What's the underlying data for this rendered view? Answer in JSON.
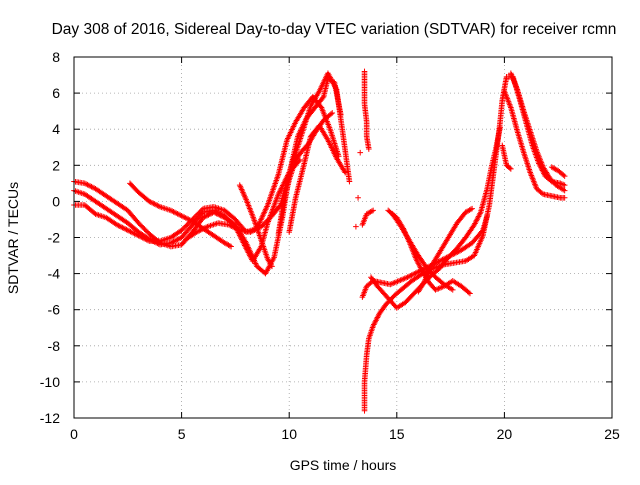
{
  "chart_data": {
    "type": "scatter",
    "title": "Day 308 of 2016, Sidereal Day-to-day VTEC variation (SDTVAR) for receiver rcmn",
    "xlabel": "GPS time / hours",
    "ylabel": "SDTVAR / TECUs",
    "xlim": [
      0,
      25
    ],
    "ylim": [
      -12,
      8
    ],
    "xticks": [
      0,
      5,
      10,
      15,
      20,
      25
    ],
    "yticks": [
      -12,
      -10,
      -8,
      -6,
      -4,
      -2,
      0,
      2,
      4,
      6,
      8
    ],
    "grid": true,
    "marker": "plus",
    "series": [
      {
        "name": "SDTVAR",
        "color": "#ff0000",
        "tracks": [
          [
            [
              0.0,
              1.1
            ],
            [
              0.5,
              1.0
            ],
            [
              1.0,
              0.7
            ],
            [
              1.5,
              0.3
            ],
            [
              2.0,
              -0.1
            ],
            [
              2.5,
              -0.5
            ],
            [
              3.0,
              -1.2
            ],
            [
              3.5,
              -1.8
            ],
            [
              4.0,
              -2.3
            ],
            [
              4.5,
              -2.5
            ],
            [
              5.0,
              -2.4
            ],
            [
              5.5,
              -1.7
            ],
            [
              6.0,
              -0.9
            ],
            [
              6.5,
              -0.6
            ],
            [
              7.0,
              -0.9
            ],
            [
              7.5,
              -1.3
            ],
            [
              8.0,
              -2.3
            ],
            [
              8.5,
              -3.6
            ],
            [
              8.9,
              -4.0
            ],
            [
              9.3,
              -3.1
            ],
            [
              9.7,
              -0.8
            ],
            [
              10.0,
              1.5
            ],
            [
              10.4,
              3.6
            ],
            [
              10.8,
              4.6
            ],
            [
              11.2,
              5.2
            ],
            [
              11.6,
              5.8
            ],
            [
              11.8,
              6.8
            ],
            [
              12.1,
              6.6
            ],
            [
              12.4,
              4.8
            ]
          ],
          [
            [
              0.0,
              0.6
            ],
            [
              0.5,
              0.4
            ],
            [
              1.0,
              0.0
            ],
            [
              1.5,
              -0.4
            ],
            [
              2.0,
              -0.8
            ],
            [
              2.5,
              -1.2
            ],
            [
              3.0,
              -1.7
            ],
            [
              3.5,
              -2.1
            ],
            [
              4.0,
              -2.4
            ],
            [
              4.5,
              -2.3
            ],
            [
              5.0,
              -2.0
            ],
            [
              5.5,
              -1.3
            ],
            [
              6.0,
              -0.6
            ],
            [
              6.5,
              -0.5
            ],
            [
              7.0,
              -0.8
            ],
            [
              7.5,
              -1.4
            ],
            [
              8.0,
              -2.6
            ],
            [
              8.3,
              -3.3
            ],
            [
              8.7,
              -2.5
            ],
            [
              9.0,
              -1.2
            ],
            [
              9.5,
              0.4
            ],
            [
              10.0,
              1.6
            ],
            [
              10.5,
              3.4
            ],
            [
              11.0,
              5.3
            ],
            [
              11.4,
              6.1
            ],
            [
              11.8,
              7.1
            ],
            [
              12.2,
              6.2
            ],
            [
              12.5,
              3.7
            ],
            [
              12.8,
              1.1
            ]
          ],
          [
            [
              0.0,
              -0.2
            ],
            [
              0.5,
              -0.2
            ],
            [
              1.0,
              -0.7
            ],
            [
              1.5,
              -0.9
            ],
            [
              2.0,
              -1.3
            ],
            [
              2.5,
              -1.6
            ],
            [
              3.0,
              -1.9
            ],
            [
              3.5,
              -2.2
            ],
            [
              4.0,
              -2.2
            ],
            [
              4.5,
              -2.0
            ],
            [
              5.0,
              -1.6
            ],
            [
              5.5,
              -1.0
            ],
            [
              6.0,
              -0.4
            ],
            [
              6.5,
              -0.3
            ],
            [
              7.0,
              -0.5
            ],
            [
              7.5,
              -1.0
            ],
            [
              8.0,
              -1.7
            ],
            [
              8.5,
              -1.5
            ],
            [
              9.0,
              -0.2
            ],
            [
              9.5,
              1.5
            ],
            [
              9.9,
              3.4
            ],
            [
              10.3,
              4.4
            ],
            [
              10.7,
              5.2
            ],
            [
              11.1,
              5.8
            ],
            [
              11.5,
              5.2
            ],
            [
              11.9,
              4.0
            ],
            [
              12.3,
              2.5
            ]
          ],
          [
            [
              2.6,
              1.0
            ],
            [
              3.0,
              0.5
            ],
            [
              3.5,
              0.0
            ],
            [
              4.0,
              -0.3
            ],
            [
              4.5,
              -0.5
            ],
            [
              5.0,
              -0.8
            ],
            [
              5.5,
              -1.1
            ],
            [
              6.0,
              -1.5
            ],
            [
              6.5,
              -1.9
            ],
            [
              7.0,
              -2.3
            ],
            [
              7.3,
              -2.5
            ]
          ],
          [
            [
              5.2,
              -2.1
            ],
            [
              5.7,
              -1.7
            ],
            [
              6.2,
              -1.4
            ],
            [
              6.7,
              -1.2
            ],
            [
              7.2,
              -1.3
            ],
            [
              7.7,
              -1.6
            ],
            [
              8.2,
              -1.7
            ],
            [
              8.7,
              -1.4
            ],
            [
              9.2,
              -0.8
            ],
            [
              9.6,
              -0.2
            ],
            [
              10.0,
              1.6
            ],
            [
              10.5,
              2.3
            ]
          ],
          [
            [
              7.7,
              0.9
            ],
            [
              8.0,
              0.1
            ],
            [
              8.3,
              -0.8
            ],
            [
              8.6,
              -1.8
            ],
            [
              9.0,
              -3.2
            ],
            [
              9.2,
              -3.6
            ]
          ],
          [
            [
              9.5,
              -1.8
            ],
            [
              9.7,
              -0.3
            ],
            [
              10.0,
              1.2
            ],
            [
              10.3,
              2.3
            ],
            [
              10.6,
              2.8
            ],
            [
              10.9,
              3.2
            ],
            [
              11.2,
              3.8
            ],
            [
              11.6,
              4.5
            ],
            [
              12.0,
              4.9
            ]
          ],
          [
            [
              10.0,
              -1.7
            ],
            [
              10.3,
              0.2
            ],
            [
              10.7,
              2.1
            ],
            [
              11.0,
              3.6
            ],
            [
              11.4,
              4.2
            ],
            [
              11.8,
              3.4
            ],
            [
              12.2,
              2.4
            ],
            [
              12.6,
              1.6
            ]
          ],
          [
            [
              13.4,
              -1.3
            ],
            [
              13.6,
              -0.7
            ],
            [
              13.9,
              -0.5
            ]
          ],
          [
            [
              13.1,
              -1.4
            ]
          ],
          [
            [
              13.2,
              0.2
            ]
          ],
          [
            [
              13.3,
              2.7
            ]
          ],
          [
            [
              13.4,
              -5.3
            ],
            [
              13.6,
              -4.7
            ],
            [
              13.9,
              -4.4
            ],
            [
              14.3,
              -4.5
            ],
            [
              14.7,
              -4.6
            ],
            [
              15.1,
              -4.4
            ],
            [
              15.5,
              -4.2
            ],
            [
              16.0,
              -3.9
            ],
            [
              16.5,
              -3.6
            ],
            [
              17.0,
              -3.3
            ],
            [
              17.5,
              -3.0
            ],
            [
              18.0,
              -2.7
            ],
            [
              18.5,
              -2.3
            ],
            [
              19.0,
              -1.6
            ],
            [
              19.2,
              -0.8
            ]
          ],
          [
            [
              13.5,
              -11.6
            ],
            [
              13.5,
              -10.0
            ],
            [
              13.6,
              -8.5
            ],
            [
              13.7,
              -7.6
            ],
            [
              13.9,
              -6.9
            ],
            [
              14.2,
              -6.2
            ],
            [
              14.5,
              -5.7
            ],
            [
              14.9,
              -5.2
            ],
            [
              15.3,
              -4.8
            ],
            [
              15.7,
              -4.4
            ],
            [
              16.2,
              -4.0
            ],
            [
              16.7,
              -3.7
            ],
            [
              17.2,
              -3.5
            ],
            [
              17.7,
              -3.4
            ],
            [
              18.2,
              -3.3
            ],
            [
              18.6,
              -3.0
            ],
            [
              19.0,
              -1.9
            ],
            [
              19.3,
              -0.2
            ],
            [
              19.5,
              1.6
            ],
            [
              19.7,
              3.4
            ],
            [
              19.8,
              4.4
            ]
          ],
          [
            [
              13.8,
              -4.2
            ],
            [
              14.1,
              -4.7
            ],
            [
              14.4,
              -5.1
            ],
            [
              14.7,
              -5.5
            ],
            [
              15.0,
              -5.9
            ],
            [
              15.4,
              -5.6
            ],
            [
              15.8,
              -5.1
            ],
            [
              16.2,
              -4.6
            ],
            [
              16.6,
              -4.1
            ],
            [
              17.0,
              -3.7
            ],
            [
              17.4,
              -3.1
            ],
            [
              17.8,
              -2.6
            ],
            [
              18.2,
              -2.0
            ],
            [
              18.6,
              -1.3
            ],
            [
              18.9,
              -0.6
            ],
            [
              19.2,
              0.7
            ],
            [
              19.4,
              1.9
            ],
            [
              19.6,
              2.9
            ],
            [
              19.8,
              4.1
            ]
          ],
          [
            [
              14.6,
              -0.5
            ],
            [
              15.0,
              -0.9
            ],
            [
              15.3,
              -1.5
            ],
            [
              15.6,
              -2.3
            ],
            [
              15.9,
              -3.2
            ],
            [
              16.2,
              -3.9
            ],
            [
              16.5,
              -4.5
            ],
            [
              16.8,
              -4.9
            ],
            [
              17.2,
              -4.7
            ],
            [
              17.6,
              -4.4
            ],
            [
              18.0,
              -4.7
            ],
            [
              18.4,
              -5.1
            ]
          ],
          [
            [
              14.8,
              -0.7
            ],
            [
              15.2,
              -1.4
            ],
            [
              15.6,
              -2.2
            ],
            [
              16.0,
              -3.0
            ],
            [
              16.4,
              -3.7
            ],
            [
              16.8,
              -4.2
            ],
            [
              17.2,
              -4.6
            ],
            [
              17.6,
              -4.9
            ]
          ],
          [
            [
              16.0,
              -5.0
            ],
            [
              16.3,
              -4.4
            ],
            [
              16.6,
              -3.6
            ],
            [
              17.0,
              -2.8
            ],
            [
              17.4,
              -2.0
            ],
            [
              17.8,
              -1.2
            ],
            [
              18.2,
              -0.6
            ],
            [
              18.5,
              -0.4
            ]
          ],
          [
            [
              13.5,
              7.2
            ],
            [
              13.5,
              6.4
            ],
            [
              13.5,
              5.4
            ],
            [
              13.6,
              4.4
            ],
            [
              13.6,
              3.6
            ],
            [
              13.7,
              2.9
            ]
          ],
          [
            [
              19.8,
              4.4
            ],
            [
              19.9,
              5.6
            ],
            [
              20.1,
              6.9
            ],
            [
              20.4,
              6.9
            ],
            [
              20.7,
              5.7
            ],
            [
              21.0,
              4.4
            ],
            [
              21.3,
              3.1
            ],
            [
              21.6,
              2.1
            ],
            [
              21.9,
              1.4
            ],
            [
              22.2,
              1.1
            ],
            [
              22.6,
              1.0
            ],
            [
              22.8,
              0.9
            ]
          ],
          [
            [
              20.3,
              7.1
            ],
            [
              20.6,
              6.2
            ],
            [
              20.9,
              5.0
            ],
            [
              21.2,
              3.9
            ],
            [
              21.5,
              2.8
            ],
            [
              21.8,
              1.9
            ],
            [
              22.1,
              1.3
            ],
            [
              22.4,
              0.9
            ],
            [
              22.8,
              0.6
            ]
          ],
          [
            [
              20.0,
              6.1
            ],
            [
              20.3,
              5.2
            ],
            [
              20.6,
              3.9
            ],
            [
              20.9,
              2.7
            ],
            [
              21.2,
              1.6
            ],
            [
              21.5,
              0.7
            ],
            [
              21.8,
              0.4
            ],
            [
              22.2,
              0.3
            ],
            [
              22.6,
              0.2
            ],
            [
              22.8,
              0.2
            ]
          ],
          [
            [
              19.9,
              3.1
            ],
            [
              20.1,
              2.0
            ],
            [
              20.3,
              1.8
            ]
          ],
          [
            [
              22.2,
              1.9
            ],
            [
              22.5,
              1.7
            ],
            [
              22.8,
              1.4
            ]
          ]
        ]
      }
    ]
  }
}
